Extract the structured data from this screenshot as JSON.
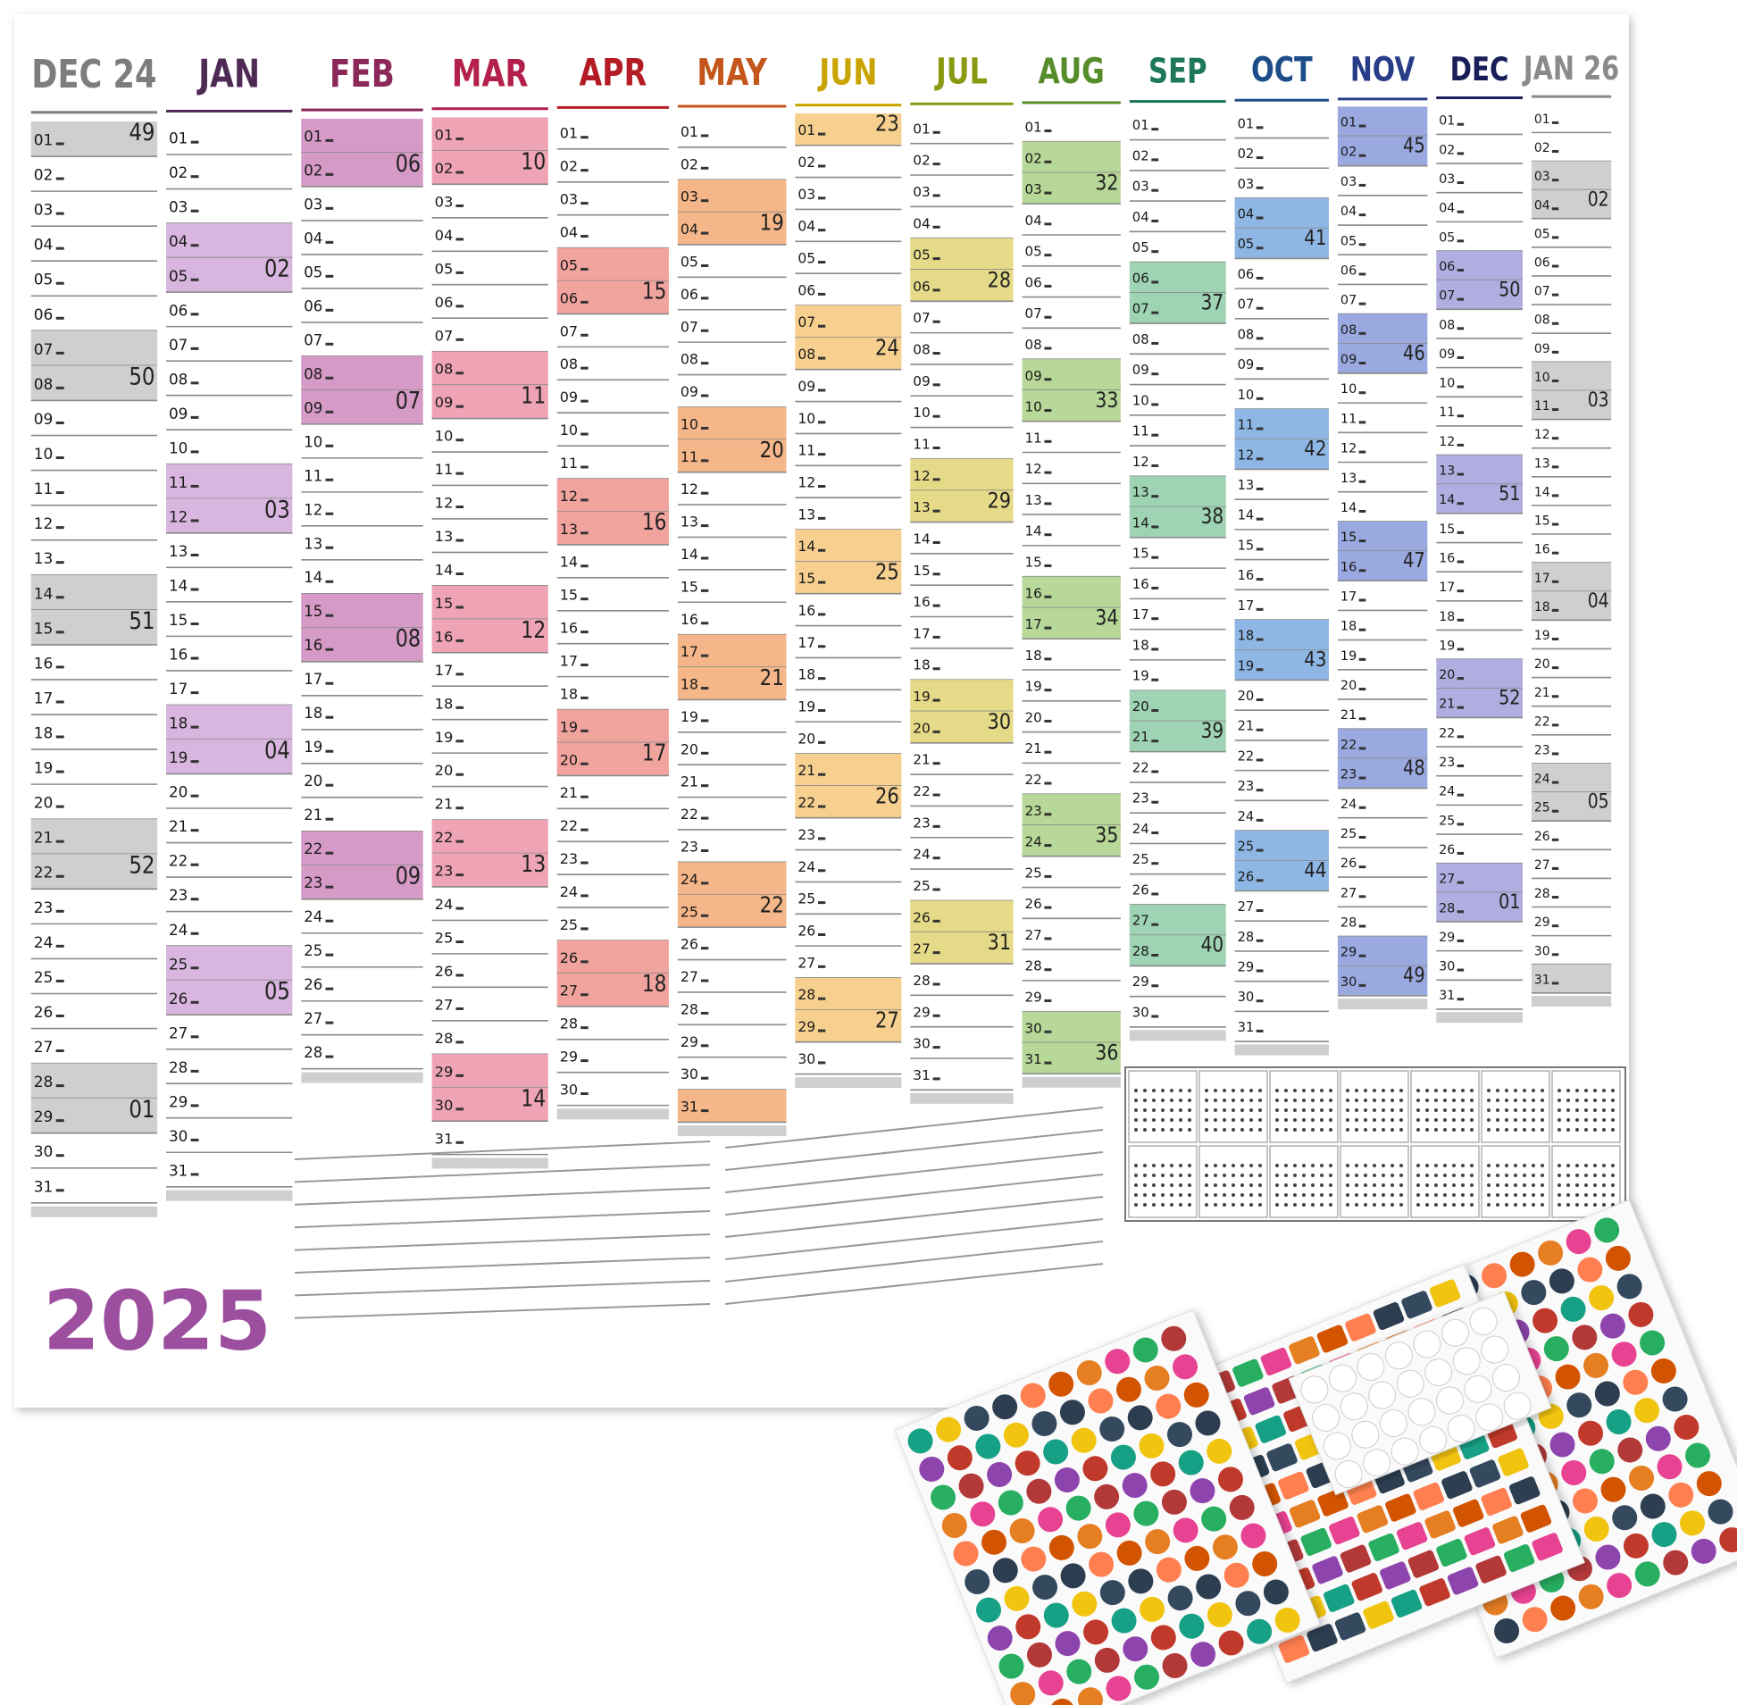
{
  "year": "2025",
  "columns": [
    {
      "header": "DEC 24",
      "color": "#7d7d7d",
      "shade": "#cfcfcf",
      "days": [
        "01",
        "02",
        "03",
        "04",
        "05",
        "06",
        "07",
        "08",
        "09",
        "10",
        "11",
        "12",
        "13",
        "14",
        "15",
        "16",
        "17",
        "18",
        "19",
        "20",
        "21",
        "22",
        "23",
        "24",
        "25",
        "26",
        "27",
        "28",
        "29",
        "30",
        "31"
      ],
      "weeks": [
        "49",
        "50",
        "51",
        "52",
        "01"
      ]
    },
    {
      "header": "JAN",
      "color": "#4e2a55",
      "shade": "#d8b6df",
      "days": [
        "01",
        "02",
        "03",
        "04",
        "05",
        "06",
        "07",
        "08",
        "09",
        "10",
        "11",
        "12",
        "13",
        "14",
        "15",
        "16",
        "17",
        "18",
        "19",
        "20",
        "21",
        "22",
        "23",
        "24",
        "25",
        "26",
        "27",
        "28",
        "29",
        "30",
        "31"
      ],
      "weeks": [
        "02",
        "03",
        "04",
        "05"
      ]
    },
    {
      "header": "FEB",
      "color": "#8c2759",
      "shade": "#d69ac6",
      "days": [
        "01",
        "02",
        "03",
        "04",
        "05",
        "06",
        "07",
        "08",
        "09",
        "10",
        "11",
        "12",
        "13",
        "14",
        "15",
        "16",
        "17",
        "18",
        "19",
        "20",
        "21",
        "22",
        "23",
        "24",
        "25",
        "26",
        "27",
        "28"
      ],
      "weeks": [
        "06",
        "07",
        "08",
        "09"
      ]
    },
    {
      "header": "MAR",
      "color": "#b3204c",
      "shade": "#efa4b6",
      "days": [
        "01",
        "02",
        "03",
        "04",
        "05",
        "06",
        "07",
        "08",
        "09",
        "10",
        "11",
        "12",
        "13",
        "14",
        "15",
        "16",
        "17",
        "18",
        "19",
        "20",
        "21",
        "22",
        "23",
        "24",
        "25",
        "26",
        "27",
        "28",
        "29",
        "30",
        "31"
      ],
      "weeks": [
        "10",
        "11",
        "12",
        "13",
        "14"
      ]
    },
    {
      "header": "APR",
      "color": "#b31c25",
      "shade": "#f1a39e",
      "days": [
        "01",
        "02",
        "03",
        "04",
        "05",
        "06",
        "07",
        "08",
        "09",
        "10",
        "11",
        "12",
        "13",
        "14",
        "15",
        "16",
        "17",
        "18",
        "19",
        "20",
        "21",
        "22",
        "23",
        "24",
        "25",
        "26",
        "27",
        "28",
        "29",
        "30"
      ],
      "weeks": [
        "15",
        "16",
        "17",
        "18"
      ]
    },
    {
      "header": "MAY",
      "color": "#c4561c",
      "shade": "#f5b789",
      "days": [
        "01",
        "02",
        "03",
        "04",
        "05",
        "06",
        "07",
        "08",
        "09",
        "10",
        "11",
        "12",
        "13",
        "14",
        "15",
        "16",
        "17",
        "18",
        "19",
        "20",
        "21",
        "22",
        "23",
        "24",
        "25",
        "26",
        "27",
        "28",
        "29",
        "30",
        "31"
      ],
      "weeks": [
        "19",
        "20",
        "21",
        "22"
      ]
    },
    {
      "header": "JUN",
      "color": "#c9a400",
      "shade": "#f7d08f",
      "days": [
        "01",
        "02",
        "03",
        "04",
        "05",
        "06",
        "07",
        "08",
        "09",
        "10",
        "11",
        "12",
        "13",
        "14",
        "15",
        "16",
        "17",
        "18",
        "19",
        "20",
        "21",
        "22",
        "23",
        "24",
        "25",
        "26",
        "27",
        "28",
        "29",
        "30"
      ],
      "weeks": [
        "23",
        "24",
        "25",
        "26",
        "27"
      ]
    },
    {
      "header": "JUL",
      "color": "#8a9912",
      "shade": "#e5da88",
      "days": [
        "01",
        "02",
        "03",
        "04",
        "05",
        "06",
        "07",
        "08",
        "09",
        "10",
        "11",
        "12",
        "13",
        "14",
        "15",
        "16",
        "17",
        "18",
        "19",
        "20",
        "21",
        "22",
        "23",
        "24",
        "25",
        "26",
        "27",
        "28",
        "29",
        "30",
        "31"
      ],
      "weeks": [
        "28",
        "29",
        "30",
        "31"
      ]
    },
    {
      "header": "AUG",
      "color": "#578c2a",
      "shade": "#b7d898",
      "days": [
        "01",
        "02",
        "03",
        "04",
        "05",
        "06",
        "07",
        "08",
        "09",
        "10",
        "11",
        "12",
        "13",
        "14",
        "15",
        "16",
        "17",
        "18",
        "19",
        "20",
        "21",
        "22",
        "23",
        "24",
        "25",
        "26",
        "27",
        "28",
        "29",
        "30",
        "31"
      ],
      "weeks": [
        "32",
        "33",
        "34",
        "35",
        "36"
      ]
    },
    {
      "header": "SEP",
      "color": "#1e7857",
      "shade": "#9ed3b3",
      "days": [
        "01",
        "02",
        "03",
        "04",
        "05",
        "06",
        "07",
        "08",
        "09",
        "10",
        "11",
        "12",
        "13",
        "14",
        "15",
        "16",
        "17",
        "18",
        "19",
        "20",
        "21",
        "22",
        "23",
        "24",
        "25",
        "26",
        "27",
        "28",
        "29",
        "30"
      ],
      "weeks": [
        "37",
        "38",
        "39",
        "40"
      ]
    },
    {
      "header": "OCT",
      "color": "#1d4d88",
      "shade": "#8fb7e5",
      "days": [
        "01",
        "02",
        "03",
        "04",
        "05",
        "06",
        "07",
        "08",
        "09",
        "10",
        "11",
        "12",
        "13",
        "14",
        "15",
        "16",
        "17",
        "18",
        "19",
        "20",
        "21",
        "22",
        "23",
        "24",
        "25",
        "26",
        "27",
        "28",
        "29",
        "30",
        "31"
      ],
      "weeks": [
        "41",
        "42",
        "43",
        "44"
      ]
    },
    {
      "header": "NOV",
      "color": "#283d88",
      "shade": "#9aa9df",
      "days": [
        "01",
        "02",
        "03",
        "04",
        "05",
        "06",
        "07",
        "08",
        "09",
        "10",
        "11",
        "12",
        "13",
        "14",
        "15",
        "16",
        "17",
        "18",
        "19",
        "20",
        "21",
        "22",
        "23",
        "24",
        "25",
        "26",
        "27",
        "28",
        "29",
        "30"
      ],
      "weeks": [
        "45",
        "46",
        "47",
        "48",
        "49"
      ]
    },
    {
      "header": "DEC",
      "color": "#1a1e58",
      "shade": "#b0ade0",
      "days": [
        "01",
        "02",
        "03",
        "04",
        "05",
        "06",
        "07",
        "08",
        "09",
        "10",
        "11",
        "12",
        "13",
        "14",
        "15",
        "16",
        "17",
        "18",
        "19",
        "20",
        "21",
        "22",
        "23",
        "24",
        "25",
        "26",
        "27",
        "28",
        "29",
        "30",
        "31"
      ],
      "weeks": [
        "50",
        "51",
        "52",
        "01"
      ]
    },
    {
      "header": "JAN 26",
      "color": "#8a8a8a",
      "shade": "#cfcfcf",
      "days": [
        "01",
        "02",
        "03",
        "04",
        "05",
        "06",
        "07",
        "08",
        "09",
        "10",
        "11",
        "12",
        "13",
        "14",
        "15",
        "16",
        "17",
        "18",
        "19",
        "20",
        "21",
        "22",
        "23",
        "24",
        "25",
        "26",
        "27",
        "28",
        "29",
        "30",
        "31"
      ],
      "weeks": [
        "02",
        "03",
        "04",
        "05"
      ]
    }
  ]
}
